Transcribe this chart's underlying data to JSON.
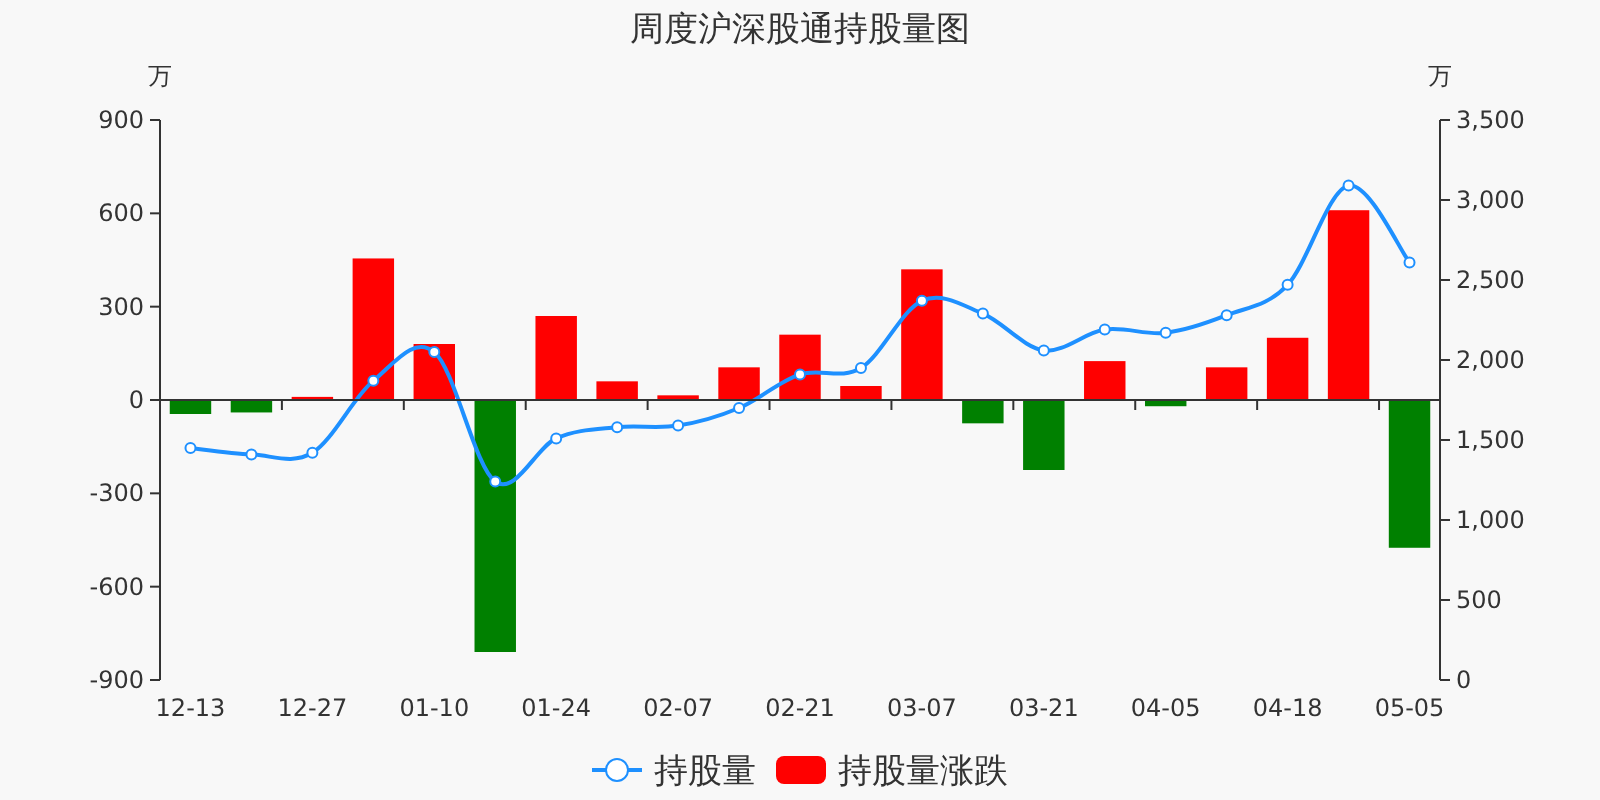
{
  "chart_data": {
    "type": "bar",
    "title": "周度沪深股通持股量图",
    "ylabel": "万",
    "y2label": "万",
    "categories": [
      "12-13",
      null,
      "12-27",
      null,
      "01-10",
      null,
      "01-24",
      null,
      "02-07",
      null,
      "02-21",
      null,
      "03-07",
      null,
      "03-21",
      null,
      "04-05",
      null,
      "04-18",
      null,
      "05-05"
    ],
    "series": [
      {
        "name": "持股量",
        "type": "line",
        "axis": "y2",
        "color": "#1e90ff",
        "values": [
          1450,
          1410,
          1420,
          1870,
          2050,
          1240,
          1510,
          1580,
          1590,
          1700,
          1910,
          1950,
          2370,
          2290,
          2060,
          2190,
          2170,
          2280,
          2470,
          3090,
          2610
        ]
      },
      {
        "name": "持股量涨跌",
        "color": "#ff0000",
        "values": [
          -45,
          -40,
          10,
          455,
          180,
          -810,
          270,
          60,
          15,
          105,
          210,
          45,
          420,
          -75,
          -225,
          125,
          -20,
          105,
          200,
          610,
          -475
        ],
        "colors": [
          "#008000",
          "#008000",
          "#ff0000",
          "#ff0000",
          "#ff0000",
          "#008000",
          "#ff0000",
          "#ff0000",
          "#ff0000",
          "#ff0000",
          "#ff0000",
          "#ff0000",
          "#ff0000",
          "#008000",
          "#008000",
          "#ff0000",
          "#008000",
          "#ff0000",
          "#ff0000",
          "#ff0000",
          "#008000"
        ]
      }
    ],
    "ylim": [
      -900,
      900
    ],
    "yticks": [
      -900,
      -600,
      -300,
      0,
      300,
      600,
      900
    ],
    "y2lim": [
      0,
      3500
    ],
    "y2ticks": [
      0,
      500,
      {
        "value": 1000,
        "label": "1,000"
      },
      {
        "value": 1500,
        "label": "1,500"
      },
      {
        "value": 2000,
        "label": "2,000"
      },
      {
        "value": 2500,
        "label": "2,500"
      },
      {
        "value": 3000,
        "label": "3,000"
      },
      {
        "value": 3500,
        "label": "3,500"
      }
    ],
    "legend": "bottom",
    "marker": "circle"
  }
}
